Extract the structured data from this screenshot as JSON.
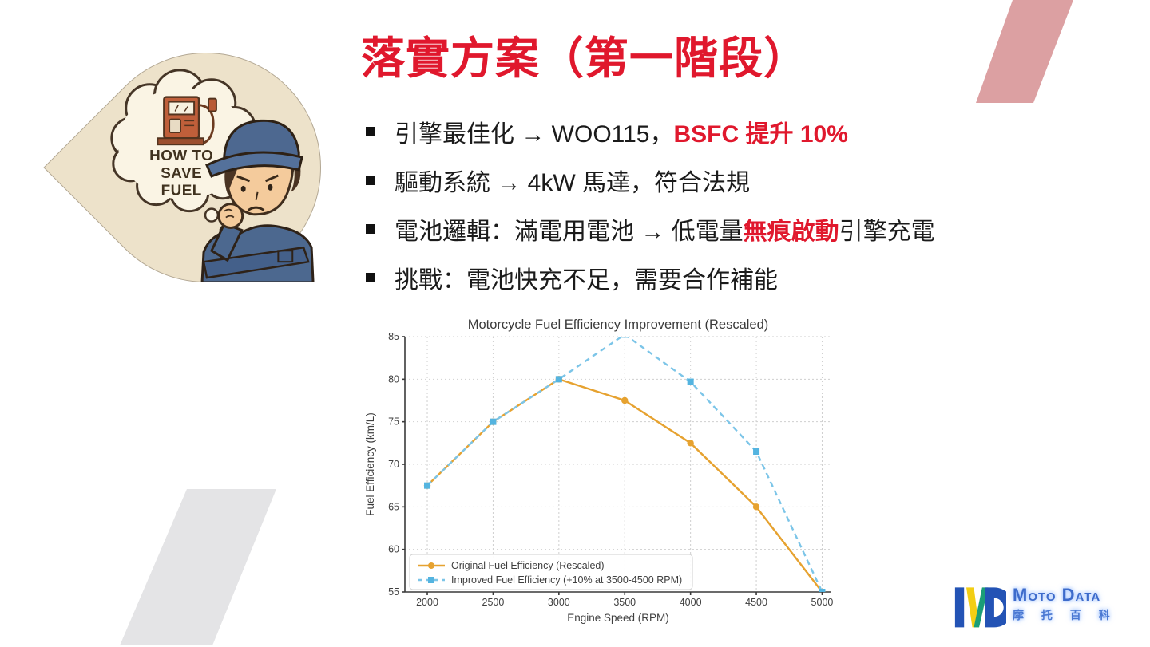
{
  "slide": {
    "title": "落實方案（第一階段）",
    "accent_red": "#E0182D",
    "deco_pink": "#DCA0A2",
    "deco_gray": "#E4E4E6",
    "badge_cream": "#EDE2CA"
  },
  "bullets": [
    {
      "segments": [
        {
          "text": "引擎最佳化 → WOO115，"
        },
        {
          "text": "BSFC 提升 10%",
          "red": true
        }
      ]
    },
    {
      "segments": [
        {
          "text": "驅動系統 → 4kW 馬達，符合法規"
        }
      ]
    },
    {
      "segments": [
        {
          "text": "電池邏輯：滿電用電池 → 低電量"
        },
        {
          "text": "無痕啟動",
          "red": true
        },
        {
          "text": "引擎充電"
        }
      ]
    },
    {
      "segments": [
        {
          "text": "挑戰：電池快充不足，需要合作補能"
        }
      ]
    }
  ],
  "badge": {
    "thought_lines": [
      "HOW TO",
      "SAVE",
      "FUEL"
    ]
  },
  "chart_data": {
    "type": "line",
    "title": "Motorcycle Fuel Efficiency Improvement (Rescaled)",
    "xlabel": "Engine Speed (RPM)",
    "ylabel": "Fuel Efficiency (km/L)",
    "x": [
      2000,
      2500,
      3000,
      3500,
      4000,
      4500,
      5000
    ],
    "xticks": [
      2000,
      2500,
      3000,
      3500,
      4000,
      4500,
      5000
    ],
    "yticks": [
      55,
      60,
      65,
      70,
      75,
      80,
      85
    ],
    "xlim": [
      1830,
      5070
    ],
    "ylim": [
      55,
      85
    ],
    "grid": true,
    "legend_position": "lower left",
    "series": [
      {
        "name": "Original Fuel Efficiency (Rescaled)",
        "color": "#E6A230",
        "marker_color": "#E6A230",
        "style": "solid",
        "marker": "circle",
        "values": [
          67.5,
          75,
          80,
          77.5,
          72.5,
          65,
          55
        ]
      },
      {
        "name": "Improved Fuel Efficiency (+10% at 3500-4500 RPM)",
        "color": "#7CC5E8",
        "marker_color": "#54B4E0",
        "style": "dashed",
        "marker": "square",
        "values": [
          67.5,
          75,
          80,
          85.25,
          79.7,
          71.5,
          55
        ]
      }
    ]
  },
  "logo": {
    "brand": "Moto Data",
    "subtitle": "摩 托 百 科"
  }
}
